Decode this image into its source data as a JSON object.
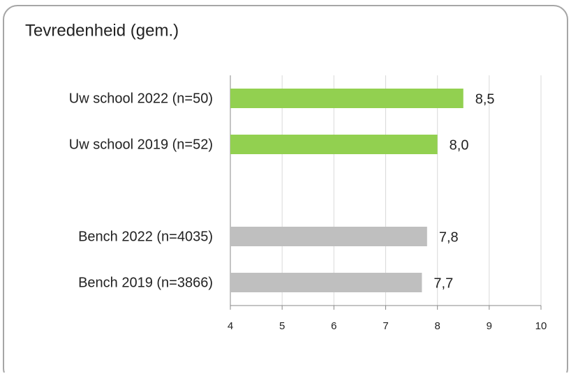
{
  "chart_data": {
    "type": "bar",
    "orientation": "horizontal",
    "title": "Tevredenheid (gem.)",
    "categories": [
      "Uw school 2022 (n=50)",
      "Uw school 2019 (n=52)",
      null,
      "Bench 2022 (n=4035)",
      "Bench 2019 (n=3866)"
    ],
    "values": [
      8.5,
      8.0,
      null,
      7.8,
      7.7
    ],
    "value_labels": [
      "8,5",
      "8,0",
      null,
      "7,8",
      "7,7"
    ],
    "colors": [
      "#92d050",
      "#92d050",
      null,
      "#bfbfbf",
      "#bfbfbf"
    ],
    "xlim": [
      4,
      10
    ],
    "xticks": [
      4,
      5,
      6,
      7,
      8,
      9,
      10
    ],
    "grid": true
  }
}
